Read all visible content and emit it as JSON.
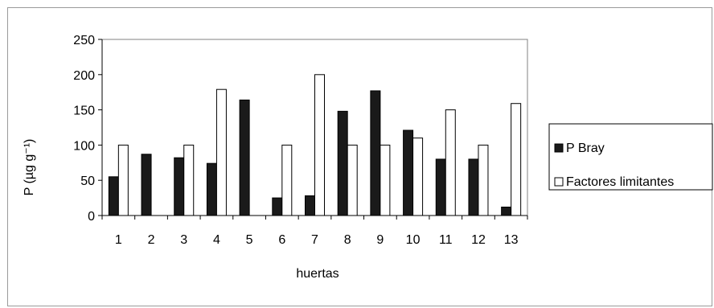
{
  "chart_data": {
    "type": "bar",
    "title": "",
    "xlabel": "huertas",
    "ylabel": "P (µg g⁻¹)",
    "ylim": [
      0,
      250
    ],
    "yticks": [
      0,
      50,
      100,
      150,
      200,
      250
    ],
    "grid": false,
    "legend_position": "right",
    "categories": [
      "1",
      "2",
      "3",
      "4",
      "5",
      "6",
      "7",
      "8",
      "9",
      "10",
      "11",
      "12",
      "13"
    ],
    "series": [
      {
        "name": "P Bray",
        "fill": "#1a1a1a",
        "values": [
          55,
          87,
          82,
          74,
          164,
          25,
          28,
          148,
          177,
          121,
          80,
          80,
          12
        ]
      },
      {
        "name": "Factores limitantes",
        "fill": "#ffffff",
        "values": [
          100,
          null,
          100,
          179,
          null,
          100,
          200,
          100,
          100,
          110,
          150,
          100,
          159
        ]
      }
    ]
  }
}
